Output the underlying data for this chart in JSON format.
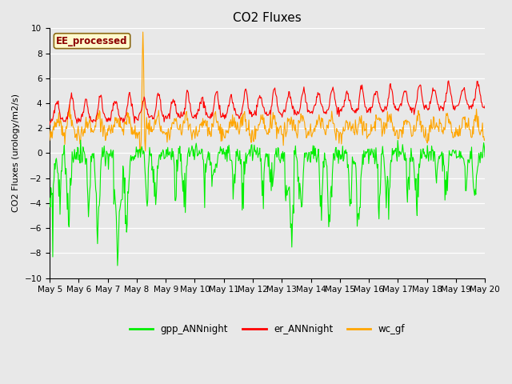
{
  "title": "CO2 Fluxes",
  "ylabel": "CO2 Fluxes (urology/m2/s)",
  "ylim": [
    -10,
    10
  ],
  "yticks": [
    -10,
    -8,
    -6,
    -4,
    -2,
    0,
    2,
    4,
    6,
    8,
    10
  ],
  "annotation_text": "EE_processed",
  "annotation_color": "#8B0000",
  "annotation_bg": "#FFFACD",
  "annotation_edge": "#8B6914",
  "legend_labels": [
    "gpp_ANNnight",
    "er_ANNnight",
    "wc_gf"
  ],
  "colors": {
    "gpp": "#00EE00",
    "er": "#FF0000",
    "wc": "#FFA500"
  },
  "line_width": 0.8,
  "bg_color": "#E8E8E8",
  "fig_bg": "#E8E8E8",
  "title_fontsize": 11,
  "axis_fontsize": 8,
  "tick_fontsize": 7.5
}
